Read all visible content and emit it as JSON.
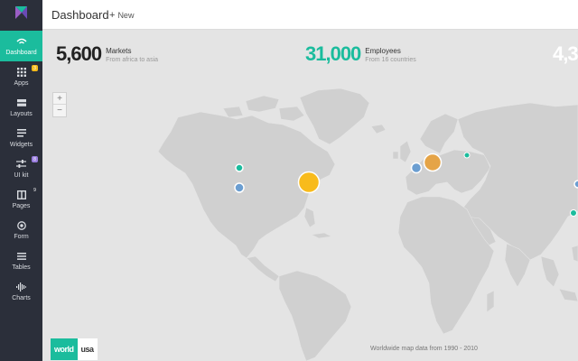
{
  "app": {
    "page_title": "Dashboard",
    "new_label": "New"
  },
  "sidebar": {
    "items": [
      {
        "label": "Dashboard",
        "icon": "wifi-icon",
        "active": true
      },
      {
        "label": "Apps",
        "icon": "grid-icon",
        "badge": "3"
      },
      {
        "label": "Layouts",
        "icon": "layout-icon"
      },
      {
        "label": "Widgets",
        "icon": "list-icon"
      },
      {
        "label": "UI kit",
        "icon": "sliders-icon",
        "badge": "8"
      },
      {
        "label": "Pages",
        "icon": "columns-icon",
        "badge": "9"
      },
      {
        "label": "Form",
        "icon": "target-icon"
      },
      {
        "label": "Tables",
        "icon": "table-icon"
      },
      {
        "label": "Charts",
        "icon": "waveform-icon"
      }
    ]
  },
  "stats": [
    {
      "value": "5,600",
      "label": "Markets",
      "sub": "From africa to asia",
      "color": "#222222"
    },
    {
      "value": "31,000",
      "label": "Employees",
      "sub": "From 16 countries",
      "color": "#1bbc9d"
    },
    {
      "value": "4,3",
      "color": "#ffffff"
    }
  ],
  "map": {
    "zoom_in": "+",
    "zoom_out": "−",
    "tabs": [
      {
        "label": "world",
        "active": true
      },
      {
        "label": "usa",
        "active": false
      }
    ],
    "footnote": "Worldwide map data from 1990 - 2010",
    "colors": {
      "land": "#d0d0d0",
      "ocean": "#e4e4e4",
      "accent": "#1bbc9d",
      "yellow": "#f8bb1c",
      "orange": "#e5a447",
      "blue": "#6b9ed1"
    }
  }
}
